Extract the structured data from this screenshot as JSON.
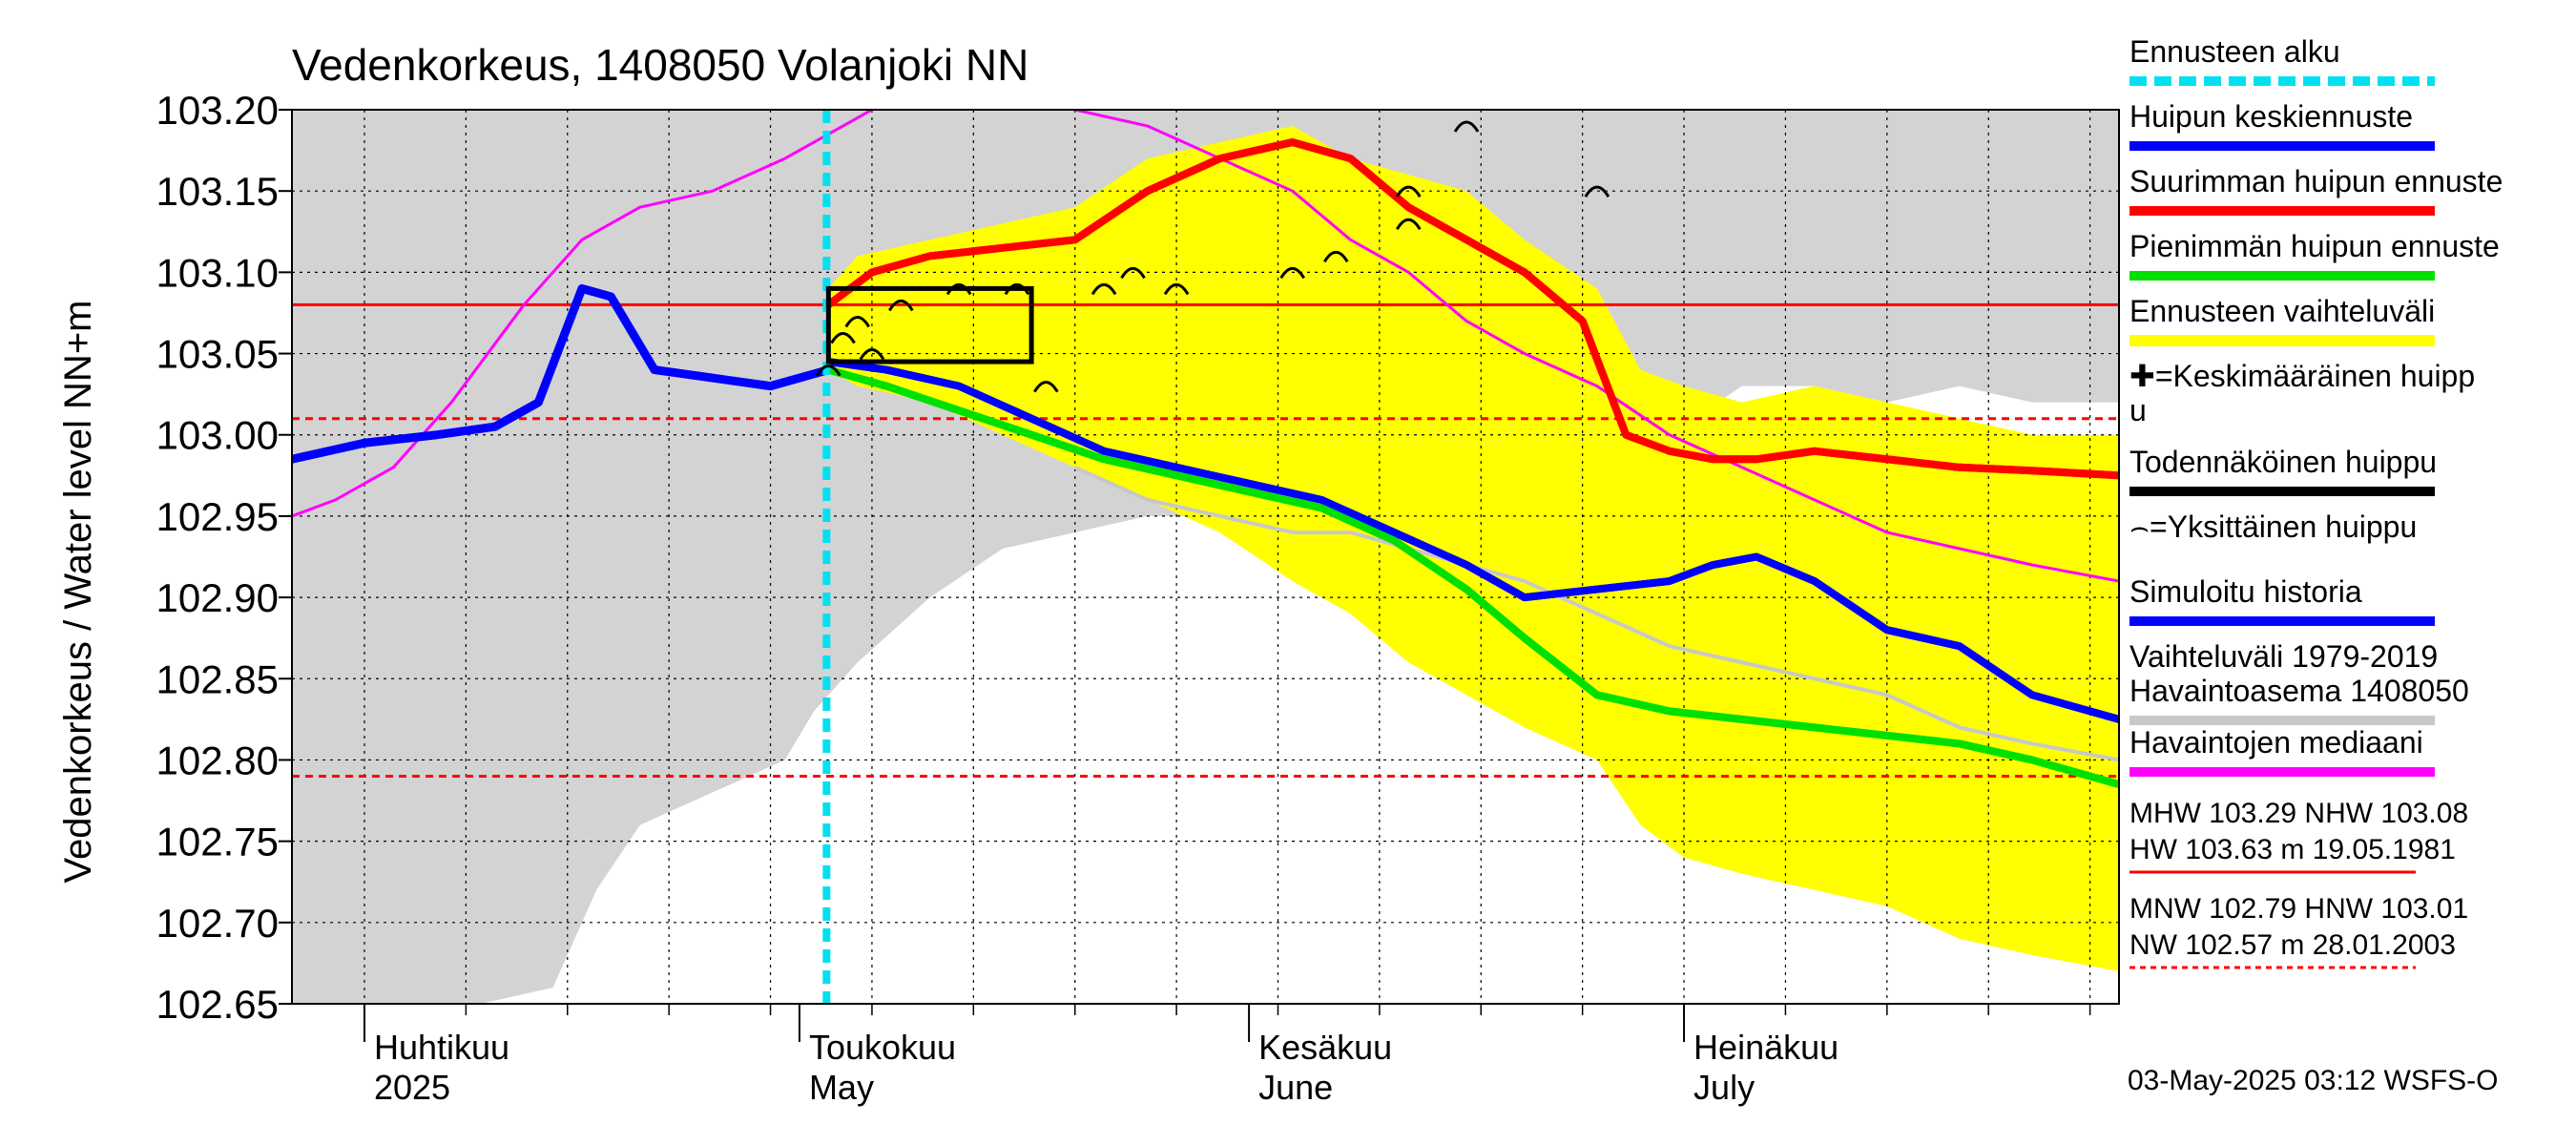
{
  "chart_data": {
    "type": "line",
    "title": "Vedenkorkeus, 1408050 Volanjoki NN",
    "ylabel": "Vedenkorkeus / Water level   NN+m",
    "ylim": [
      102.65,
      103.2
    ],
    "y_ticks": [
      "102.65",
      "102.70",
      "102.75",
      "102.80",
      "102.85",
      "102.90",
      "102.95",
      "103.00",
      "103.05",
      "103.10",
      "103.15",
      "103.20"
    ],
    "x_start": "2025-03-27",
    "x_end": "2025-07-31",
    "forecast_start": "2025-05-03",
    "months": [
      {
        "date": "2025-04-01",
        "fi": "Huhtikuu",
        "en": "2025"
      },
      {
        "date": "2025-05-01",
        "fi": "Toukokuu",
        "en": "May"
      },
      {
        "date": "2025-06-01",
        "fi": "Kesäkuu",
        "en": "June"
      },
      {
        "date": "2025-07-01",
        "fi": "Heinäkuu",
        "en": "July"
      }
    ],
    "ref_lines": [
      {
        "name": "NHW",
        "value": 103.08,
        "style": "solid",
        "color": "#ff0000"
      },
      {
        "name": "HNW",
        "value": 103.01,
        "style": "dashed",
        "color": "#ff0000"
      },
      {
        "name": "MNW",
        "value": 102.79,
        "style": "dashed",
        "color": "#ff0000"
      }
    ],
    "gray_band": {
      "x": [
        "2025-03-27",
        "2025-04-09",
        "2025-04-14",
        "2025-04-17",
        "2025-04-20",
        "2025-04-25",
        "2025-04-30",
        "2025-05-02",
        "2025-05-05",
        "2025-05-10",
        "2025-05-15",
        "2025-05-20",
        "2025-05-25",
        "2025-05-30",
        "2025-06-04",
        "2025-06-08",
        "2025-06-12",
        "2025-06-16",
        "2025-06-20",
        "2025-06-25",
        "2025-06-30",
        "2025-07-05",
        "2025-07-10",
        "2025-07-15",
        "2025-07-20",
        "2025-07-25",
        "2025-07-31"
      ],
      "upper": [
        103.2,
        103.2,
        103.2,
        103.2,
        103.2,
        103.2,
        103.2,
        103.2,
        103.2,
        103.2,
        103.2,
        103.2,
        103.2,
        103.2,
        103.2,
        103.2,
        103.2,
        103.2,
        103.2,
        103.2,
        103.2,
        103.2,
        103.2,
        103.2,
        103.2,
        103.2,
        103.2
      ],
      "lower": [
        102.65,
        102.65,
        102.66,
        102.72,
        102.76,
        102.78,
        102.8,
        102.83,
        102.86,
        102.9,
        102.93,
        102.94,
        102.95,
        102.95,
        102.95,
        102.95,
        102.95,
        102.95,
        102.95,
        102.97,
        103.0,
        103.03,
        103.03,
        103.02,
        103.03,
        103.02,
        103.02
      ]
    },
    "yellow_band": {
      "x": [
        "2025-05-03",
        "2025-05-05",
        "2025-05-10",
        "2025-05-15",
        "2025-05-20",
        "2025-05-25",
        "2025-05-30",
        "2025-06-04",
        "2025-06-08",
        "2025-06-12",
        "2025-06-16",
        "2025-06-20",
        "2025-06-25",
        "2025-06-28",
        "2025-07-01",
        "2025-07-05",
        "2025-07-10",
        "2025-07-15",
        "2025-07-20",
        "2025-07-25",
        "2025-07-31"
      ],
      "upper": [
        103.09,
        103.11,
        103.12,
        103.13,
        103.14,
        103.17,
        103.18,
        103.19,
        103.17,
        103.16,
        103.15,
        103.12,
        103.09,
        103.04,
        103.03,
        103.02,
        103.03,
        103.02,
        103.01,
        103.0,
        103.0
      ],
      "lower": [
        103.04,
        103.03,
        103.02,
        103.0,
        102.98,
        102.96,
        102.94,
        102.91,
        102.89,
        102.86,
        102.84,
        102.82,
        102.8,
        102.76,
        102.74,
        102.73,
        102.72,
        102.71,
        102.69,
        102.68,
        102.67
      ]
    },
    "series": [
      {
        "name": "Havaintojen mediaani",
        "color": "#ff00ff",
        "x": [
          "2025-03-27",
          "2025-03-30",
          "2025-04-03",
          "2025-04-07",
          "2025-04-12",
          "2025-04-16",
          "2025-04-20",
          "2025-04-25",
          "2025-04-30",
          "2025-05-04",
          "2025-05-08",
          "2025-05-14",
          "2025-05-20",
          "2025-05-25",
          "2025-05-30",
          "2025-06-04",
          "2025-06-08",
          "2025-06-12",
          "2025-06-16",
          "2025-06-20",
          "2025-06-25",
          "2025-06-30",
          "2025-07-05",
          "2025-07-10",
          "2025-07-15",
          "2025-07-20",
          "2025-07-25",
          "2025-07-31"
        ],
        "y": [
          102.95,
          102.96,
          102.98,
          103.02,
          103.08,
          103.12,
          103.14,
          103.15,
          103.17,
          103.19,
          103.21,
          103.21,
          103.2,
          103.19,
          103.17,
          103.15,
          103.12,
          103.1,
          103.07,
          103.05,
          103.03,
          103.0,
          102.98,
          102.96,
          102.94,
          102.93,
          102.92,
          102.91
        ]
      },
      {
        "name": "Simuloitu historia",
        "color": "#0000ff",
        "x": [
          "2025-03-27",
          "2025-04-01",
          "2025-04-06",
          "2025-04-10",
          "2025-04-13",
          "2025-04-16",
          "2025-04-18",
          "2025-04-21",
          "2025-04-25",
          "2025-04-29",
          "2025-05-03"
        ],
        "y": [
          102.985,
          102.995,
          103.0,
          103.005,
          103.02,
          103.09,
          103.085,
          103.04,
          103.035,
          103.03,
          103.04
        ]
      },
      {
        "name": "Huipun keskiennuste",
        "color": "#0000ff",
        "x": [
          "2025-05-03",
          "2025-05-07",
          "2025-05-12",
          "2025-05-17",
          "2025-05-22",
          "2025-05-27",
          "2025-06-01",
          "2025-06-06",
          "2025-06-11",
          "2025-06-16",
          "2025-06-20",
          "2025-06-25",
          "2025-06-30",
          "2025-07-03",
          "2025-07-06",
          "2025-07-10",
          "2025-07-15",
          "2025-07-20",
          "2025-07-25",
          "2025-07-31"
        ],
        "y": [
          103.045,
          103.04,
          103.03,
          103.01,
          102.99,
          102.98,
          102.97,
          102.96,
          102.94,
          102.92,
          102.9,
          102.905,
          102.91,
          102.92,
          102.925,
          102.91,
          102.88,
          102.87,
          102.84,
          102.825
        ]
      },
      {
        "name": "Suurimman huipun ennuste",
        "color": "#ff0000",
        "x": [
          "2025-05-03",
          "2025-05-06",
          "2025-05-10",
          "2025-05-15",
          "2025-05-20",
          "2025-05-25",
          "2025-05-30",
          "2025-06-04",
          "2025-06-08",
          "2025-06-12",
          "2025-06-16",
          "2025-06-20",
          "2025-06-24",
          "2025-06-27",
          "2025-06-30",
          "2025-07-03",
          "2025-07-06",
          "2025-07-10",
          "2025-07-15",
          "2025-07-20",
          "2025-07-25",
          "2025-07-31"
        ],
        "y": [
          103.08,
          103.1,
          103.11,
          103.115,
          103.12,
          103.15,
          103.17,
          103.18,
          103.17,
          103.14,
          103.12,
          103.1,
          103.07,
          103.0,
          102.99,
          102.985,
          102.985,
          102.99,
          102.985,
          102.98,
          102.978,
          102.975
        ]
      },
      {
        "name": "Pienimmän huipun ennuste",
        "color": "#00e000",
        "x": [
          "2025-05-03",
          "2025-05-07",
          "2025-05-12",
          "2025-05-17",
          "2025-05-22",
          "2025-05-27",
          "2025-06-01",
          "2025-06-06",
          "2025-06-11",
          "2025-06-16",
          "2025-06-20",
          "2025-06-25",
          "2025-06-30",
          "2025-07-05",
          "2025-07-10",
          "2025-07-15",
          "2025-07-20",
          "2025-07-25",
          "2025-07-31"
        ],
        "y": [
          103.04,
          103.03,
          103.015,
          103.0,
          102.985,
          102.975,
          102.965,
          102.955,
          102.935,
          102.905,
          102.875,
          102.84,
          102.83,
          102.825,
          102.82,
          102.815,
          102.81,
          102.8,
          102.785
        ]
      },
      {
        "name": "Vaihteluväli 1979-2019 Havaintoasema 1408050",
        "color": "#c8c8c8",
        "x": [
          "2025-05-20",
          "2025-05-25",
          "2025-05-30",
          "2025-06-04",
          "2025-06-08",
          "2025-06-12",
          "2025-06-16",
          "2025-06-20",
          "2025-06-25",
          "2025-06-30",
          "2025-07-05",
          "2025-07-10",
          "2025-07-15",
          "2025-07-20",
          "2025-07-25",
          "2025-07-31"
        ],
        "y": [
          102.98,
          102.96,
          102.95,
          102.94,
          102.94,
          102.93,
          102.92,
          102.91,
          102.89,
          102.87,
          102.86,
          102.85,
          102.84,
          102.82,
          102.81,
          102.8
        ]
      }
    ],
    "legend": [
      {
        "label": "Ennusteen alku",
        "color": "#00e0f0",
        "style": "dashed"
      },
      {
        "label": "Huipun keskiennuste",
        "color": "#0000ff",
        "style": "line"
      },
      {
        "label": "Suurimman huipun ennuste",
        "color": "#ff0000",
        "style": "line"
      },
      {
        "label": "Pienimmän huipun ennuste",
        "color": "#00e000",
        "style": "line"
      },
      {
        "label": "Ennusteen vaihteluväli",
        "color": "#ffff00",
        "style": "line"
      },
      {
        "label": "✚=Keskimääräinen huipp",
        "label2": "u",
        "color": "#000000",
        "style": "none"
      },
      {
        "label": "Todennäköinen huippu",
        "color": "#000000",
        "style": "line"
      },
      {
        "label": "⌢=Yksittäinen huippu",
        "color": "#000000",
        "style": "none"
      },
      {
        "label": "Simuloitu historia",
        "color": "#0000ff",
        "style": "line"
      },
      {
        "label": "Vaihteluväli 1979-2019",
        "label2": " Havaintoasema 1408050",
        "color": "#c8c8c8",
        "style": "line"
      },
      {
        "label": "Havaintojen mediaani",
        "color": "#ff00ff",
        "style": "line"
      }
    ],
    "stats": [
      {
        "line1": "MHW 103.29 NHW 103.08",
        "line2": "HW 103.63 m 19.05.1981",
        "style": "solid"
      },
      {
        "line1": "MNW 102.79 HNW 103.01",
        "line2": "NW 102.57 m 28.01.2003",
        "style": "dashed"
      }
    ],
    "footer": "03-May-2025 03:12 WSFS-O"
  }
}
